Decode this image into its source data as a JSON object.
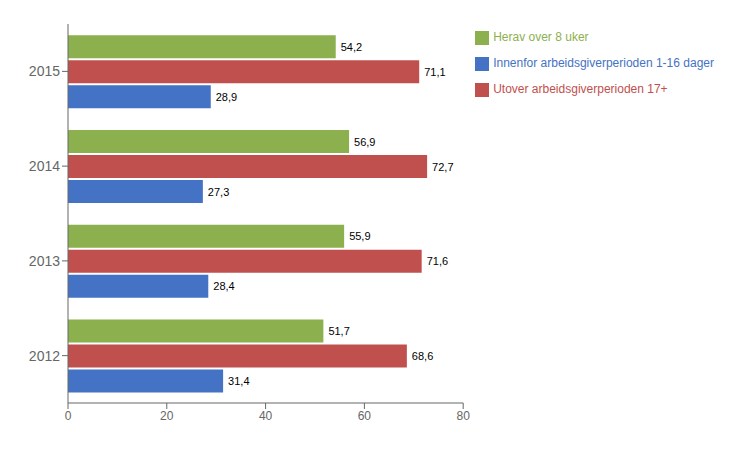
{
  "chart_data": {
    "type": "bar",
    "orientation": "horizontal",
    "categories": [
      "2015",
      "2014",
      "2013",
      "2012"
    ],
    "series": [
      {
        "name": "Herav over 8 uker",
        "color": "#8db04e",
        "values": [
          54.2,
          56.9,
          55.9,
          51.7
        ],
        "value_labels": [
          "54,2",
          "56,9",
          "55,9",
          "51,7"
        ]
      },
      {
        "name": "Utover arbeidsgiverperioden 17+",
        "color": "#c0504d",
        "values": [
          71.1,
          72.7,
          71.6,
          68.6
        ],
        "value_labels": [
          "71,1",
          "72,7",
          "71,6",
          "68,6"
        ]
      },
      {
        "name": "Innenfor arbeidsgiverperioden 1-16 dager",
        "color": "#4472c4",
        "values": [
          28.9,
          27.3,
          28.4,
          31.4
        ],
        "value_labels": [
          "28,9",
          "27,3",
          "28,4",
          "31,4"
        ]
      }
    ],
    "xlim": [
      0,
      80
    ],
    "xticks": [
      0,
      20,
      40,
      60,
      80
    ],
    "data_labels": true,
    "legend": "right",
    "grid": false
  }
}
